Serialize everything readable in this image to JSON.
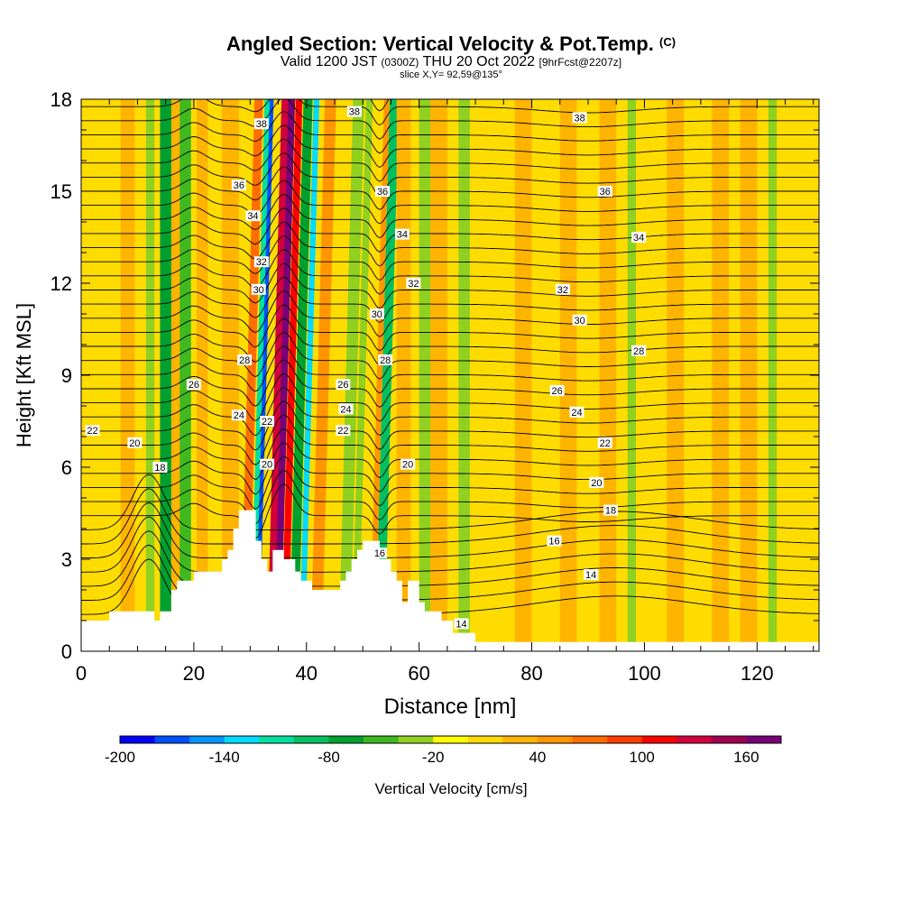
{
  "header": {
    "title": "Angled Section: Vertical Velocity & Pot.Temp.",
    "title_suffix": "(C)",
    "valid_prefix": "Valid 1200 JST",
    "valid_utc": "(0300Z)",
    "valid_date": "THU 20 Oct 2022",
    "forecast": "[9hrFcst@2207z]",
    "slice": "slice X,Y= 92,59@135°"
  },
  "chart_data": {
    "type": "heatmap",
    "xlabel": "Distance [nm]",
    "ylabel": "Height [Kft MSL]",
    "xlim": [
      0,
      131
    ],
    "ylim": [
      0,
      18
    ],
    "x_ticks": [
      0,
      20,
      40,
      60,
      80,
      100,
      120
    ],
    "y_ticks": [
      0,
      3,
      6,
      9,
      12,
      15,
      18
    ],
    "colorbar": {
      "label": "Vertical Velocity [cm/s]",
      "min": -200,
      "max": 180,
      "step": 20,
      "tick_labels": [
        -200,
        -140,
        -80,
        -20,
        40,
        100,
        160
      ],
      "colors": [
        "#0000ff",
        "#0050ff",
        "#0096ff",
        "#00dcff",
        "#00e0a0",
        "#00c060",
        "#00a030",
        "#40b820",
        "#90d020",
        "#ffff00",
        "#ffdc00",
        "#ffb400",
        "#ff9600",
        "#ff6e00",
        "#ff3c00",
        "#ff0000",
        "#d2003c",
        "#a00050",
        "#780078"
      ]
    },
    "background_velocity": 0,
    "velocity_bands": [
      {
        "x": 7,
        "w": 2.5,
        "v": 20
      },
      {
        "x": 11.5,
        "w": 1.5,
        "v": -30
      },
      {
        "x": 14,
        "w": 2,
        "v": -70
      },
      {
        "x": 16,
        "w": 1.5,
        "v": 20
      },
      {
        "x": 17.5,
        "w": 2,
        "v": -60
      },
      {
        "x": 20.5,
        "w": 2,
        "v": 30
      },
      {
        "x": 25,
        "w": 3,
        "v": 20
      },
      {
        "x": 29.5,
        "w": 1.5,
        "v": 60
      },
      {
        "x": 31.3,
        "w": 1.4,
        "v": -120
      },
      {
        "x": 32.2,
        "w": 0.7,
        "v": -170
      },
      {
        "x": 34.3,
        "w": 1.6,
        "v": 120
      },
      {
        "x": 35.5,
        "w": 1.2,
        "v": 160
      },
      {
        "x": 36.8,
        "w": 1.2,
        "v": 100
      },
      {
        "x": 38.2,
        "w": 1.6,
        "v": -80
      },
      {
        "x": 40,
        "w": 1,
        "v": -140
      },
      {
        "x": 42,
        "w": 2,
        "v": 40
      },
      {
        "x": 47,
        "w": 2,
        "v": -40
      },
      {
        "x": 49.3,
        "w": 1.2,
        "v": -30
      },
      {
        "x": 52.5,
        "w": 1,
        "v": 40
      },
      {
        "x": 53.5,
        "w": 1.6,
        "v": -90
      },
      {
        "x": 56,
        "w": 2.5,
        "v": 20
      },
      {
        "x": 60,
        "w": 2,
        "v": -40
      },
      {
        "x": 62,
        "w": 3,
        "v": 20
      },
      {
        "x": 67,
        "w": 2,
        "v": -30
      },
      {
        "x": 77,
        "w": 3,
        "v": 20
      },
      {
        "x": 85,
        "w": 3,
        "v": 20
      },
      {
        "x": 92,
        "w": 3,
        "v": 20
      },
      {
        "x": 97,
        "w": 1.5,
        "v": -30
      },
      {
        "x": 104,
        "w": 3,
        "v": 20
      },
      {
        "x": 112,
        "w": 3,
        "v": 20
      },
      {
        "x": 117,
        "w": 3,
        "v": 20
      },
      {
        "x": 122,
        "w": 1.5,
        "v": -30
      }
    ],
    "theta_labels": [
      {
        "value": "38",
        "x": 48.5,
        "y": 17.6
      },
      {
        "value": "38",
        "x": 88.5,
        "y": 17.4
      },
      {
        "value": "38",
        "x": 32,
        "y": 17.2
      },
      {
        "value": "36",
        "x": 28,
        "y": 15.2
      },
      {
        "value": "36",
        "x": 53.5,
        "y": 15
      },
      {
        "value": "36",
        "x": 93,
        "y": 15
      },
      {
        "value": "34",
        "x": 30.5,
        "y": 14.2
      },
      {
        "value": "34",
        "x": 57,
        "y": 13.6
      },
      {
        "value": "34",
        "x": 99,
        "y": 13.5
      },
      {
        "value": "32",
        "x": 32,
        "y": 12.7
      },
      {
        "value": "32",
        "x": 59,
        "y": 12
      },
      {
        "value": "32",
        "x": 85.5,
        "y": 11.8
      },
      {
        "value": "30",
        "x": 31.5,
        "y": 11.8
      },
      {
        "value": "30",
        "x": 52.5,
        "y": 11
      },
      {
        "value": "30",
        "x": 88.5,
        "y": 10.8
      },
      {
        "value": "28",
        "x": 29,
        "y": 9.5
      },
      {
        "value": "28",
        "x": 54,
        "y": 9.5
      },
      {
        "value": "28",
        "x": 99,
        "y": 9.8
      },
      {
        "value": "26",
        "x": 20,
        "y": 8.7
      },
      {
        "value": "26",
        "x": 46.5,
        "y": 8.7
      },
      {
        "value": "26",
        "x": 84.5,
        "y": 8.5
      },
      {
        "value": "24",
        "x": 28,
        "y": 7.7
      },
      {
        "value": "24",
        "x": 47,
        "y": 7.9
      },
      {
        "value": "24",
        "x": 88,
        "y": 7.8
      },
      {
        "value": "22",
        "x": 2,
        "y": 7.2
      },
      {
        "value": "22",
        "x": 33,
        "y": 7.5
      },
      {
        "value": "22",
        "x": 46.5,
        "y": 7.2
      },
      {
        "value": "22",
        "x": 93,
        "y": 6.8
      },
      {
        "value": "20",
        "x": 9.5,
        "y": 6.8
      },
      {
        "value": "20",
        "x": 33,
        "y": 6.1
      },
      {
        "value": "20",
        "x": 58,
        "y": 6.1
      },
      {
        "value": "20",
        "x": 91.5,
        "y": 5.5
      },
      {
        "value": "18",
        "x": 14,
        "y": 6
      },
      {
        "value": "18",
        "x": 94,
        "y": 4.6
      },
      {
        "value": "16",
        "x": 84,
        "y": 3.6
      },
      {
        "value": "16",
        "x": 53,
        "y": 3.2
      },
      {
        "value": "14",
        "x": 90.5,
        "y": 2.5
      },
      {
        "value": "14",
        "x": 67.5,
        "y": 0.9
      }
    ],
    "terrain_profile": [
      [
        0,
        1
      ],
      [
        5,
        1
      ],
      [
        5,
        1.3
      ],
      [
        6,
        1.3
      ],
      [
        6,
        1.3
      ],
      [
        13,
        1.3
      ],
      [
        13,
        1
      ],
      [
        14,
        1
      ],
      [
        14,
        1.3
      ],
      [
        16,
        1.3
      ],
      [
        16,
        2
      ],
      [
        17,
        2
      ],
      [
        17,
        2.3
      ],
      [
        20,
        2.3
      ],
      [
        20,
        2.6
      ],
      [
        25,
        2.6
      ],
      [
        25,
        3
      ],
      [
        26,
        3
      ],
      [
        26,
        3.3
      ],
      [
        27,
        3.3
      ],
      [
        27,
        4
      ],
      [
        28,
        4
      ],
      [
        28,
        4.6
      ],
      [
        31,
        4.6
      ],
      [
        31,
        3.6
      ],
      [
        32,
        3.6
      ],
      [
        32,
        3
      ],
      [
        33,
        3
      ],
      [
        33,
        2.6
      ],
      [
        34,
        2.6
      ],
      [
        34,
        3.3
      ],
      [
        36,
        3.3
      ],
      [
        36,
        3
      ],
      [
        38,
        3
      ],
      [
        38,
        2.6
      ],
      [
        39,
        2.6
      ],
      [
        39,
        2.3
      ],
      [
        41,
        2.3
      ],
      [
        41,
        2
      ],
      [
        46,
        2
      ],
      [
        46,
        2.3
      ],
      [
        47,
        2.3
      ],
      [
        47,
        2.6
      ],
      [
        48,
        2.6
      ],
      [
        48,
        3
      ],
      [
        49,
        3
      ],
      [
        49,
        3.3
      ],
      [
        50,
        3.3
      ],
      [
        50,
        3.6
      ],
      [
        53,
        3.6
      ],
      [
        53,
        3
      ],
      [
        55,
        3
      ],
      [
        55,
        2.6
      ],
      [
        56,
        2.6
      ],
      [
        56,
        2.3
      ],
      [
        57,
        2.3
      ],
      [
        57,
        1.6
      ],
      [
        58,
        1.6
      ],
      [
        58,
        2.3
      ],
      [
        60,
        2.3
      ],
      [
        60,
        1.6
      ],
      [
        61,
        1.6
      ],
      [
        61,
        1.3
      ],
      [
        64,
        1.3
      ],
      [
        64,
        1
      ],
      [
        66,
        1
      ],
      [
        66,
        0.6
      ],
      [
        70,
        0.6
      ],
      [
        70,
        0.3
      ],
      [
        131,
        0.3
      ]
    ]
  }
}
